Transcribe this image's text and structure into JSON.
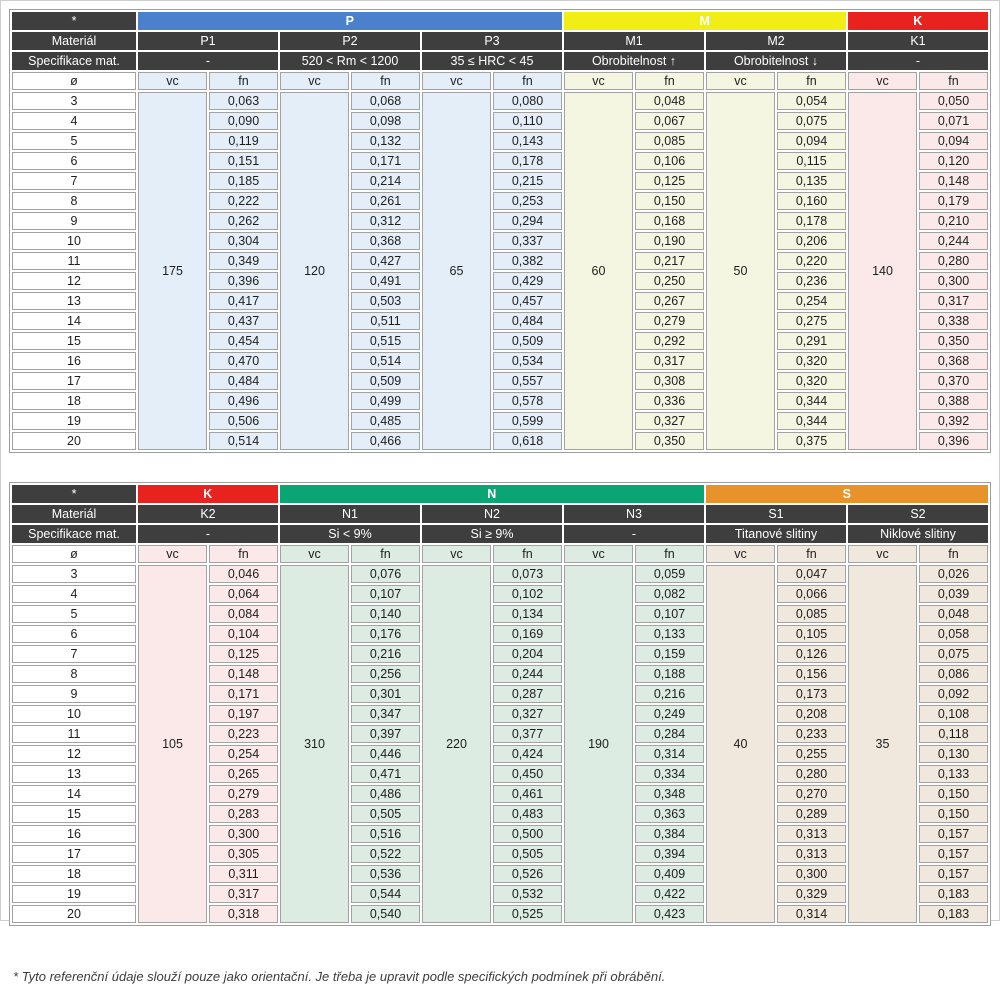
{
  "labels": {
    "corner": "*",
    "material": "Materiál",
    "spec": "Specifikace mat.",
    "diameter": "ø",
    "vc": "vc",
    "fn": "fn"
  },
  "diameters": [
    3,
    4,
    5,
    6,
    7,
    8,
    9,
    10,
    11,
    12,
    13,
    14,
    15,
    16,
    17,
    18,
    19,
    20
  ],
  "tables": [
    {
      "groups": [
        {
          "name": "P",
          "color": "#4a80cc",
          "tint": "#e4eef9",
          "columns": [
            {
              "material": "P1",
              "spec": "-",
              "vc": "175",
              "fn": [
                "0,063",
                "0,090",
                "0,119",
                "0,151",
                "0,185",
                "0,222",
                "0,262",
                "0,304",
                "0,349",
                "0,396",
                "0,417",
                "0,437",
                "0,454",
                "0,470",
                "0,484",
                "0,496",
                "0,506",
                "0,514"
              ]
            },
            {
              "material": "P2",
              "spec": "520 < Rm < 1200",
              "vc": "120",
              "fn": [
                "0,068",
                "0,098",
                "0,132",
                "0,171",
                "0,214",
                "0,261",
                "0,312",
                "0,368",
                "0,427",
                "0,491",
                "0,503",
                "0,511",
                "0,515",
                "0,514",
                "0,509",
                "0,499",
                "0,485",
                "0,466"
              ]
            },
            {
              "material": "P3",
              "spec": "35 ≤ HRC < 45",
              "vc": "65",
              "fn": [
                "0,080",
                "0,110",
                "0,143",
                "0,178",
                "0,215",
                "0,253",
                "0,294",
                "0,337",
                "0,382",
                "0,429",
                "0,457",
                "0,484",
                "0,509",
                "0,534",
                "0,557",
                "0,578",
                "0,599",
                "0,618"
              ]
            }
          ]
        },
        {
          "name": "M",
          "color": "#f0ee15",
          "tint": "#f4f6e1",
          "columns": [
            {
              "material": "M1",
              "spec": "Obrobitelnost ↑",
              "vc": "60",
              "fn": [
                "0,048",
                "0,067",
                "0,085",
                "0,106",
                "0,125",
                "0,150",
                "0,168",
                "0,190",
                "0,217",
                "0,250",
                "0,267",
                "0,279",
                "0,292",
                "0,317",
                "0,308",
                "0,336",
                "0,327",
                "0,350"
              ]
            },
            {
              "material": "M2",
              "spec": "Obrobitelnost ↓",
              "vc": "50",
              "fn": [
                "0,054",
                "0,075",
                "0,094",
                "0,115",
                "0,135",
                "0,160",
                "0,178",
                "0,206",
                "0,220",
                "0,236",
                "0,254",
                "0,275",
                "0,291",
                "0,320",
                "0,320",
                "0,344",
                "0,344",
                "0,375"
              ]
            }
          ]
        },
        {
          "name": "K",
          "color": "#e8231f",
          "tint": "#fbe9e9",
          "columns": [
            {
              "material": "K1",
              "spec": "-",
              "vc": "140",
              "fn": [
                "0,050",
                "0,071",
                "0,094",
                "0,120",
                "0,148",
                "0,179",
                "0,210",
                "0,244",
                "0,280",
                "0,300",
                "0,317",
                "0,338",
                "0,350",
                "0,368",
                "0,370",
                "0,388",
                "0,392",
                "0,396"
              ]
            }
          ]
        }
      ]
    },
    {
      "groups": [
        {
          "name": "K",
          "color": "#e8231f",
          "tint": "#fbe9e9",
          "columns": [
            {
              "material": "K2",
              "spec": "-",
              "vc": "105",
              "fn": [
                "0,046",
                "0,064",
                "0,084",
                "0,104",
                "0,125",
                "0,148",
                "0,171",
                "0,197",
                "0,223",
                "0,254",
                "0,265",
                "0,279",
                "0,283",
                "0,300",
                "0,305",
                "0,311",
                "0,317",
                "0,318"
              ]
            }
          ]
        },
        {
          "name": "N",
          "color": "#0ba574",
          "tint": "#dcece3",
          "columns": [
            {
              "material": "N1",
              "spec": "Si < 9%",
              "vc": "310",
              "fn": [
                "0,076",
                "0,107",
                "0,140",
                "0,176",
                "0,216",
                "0,256",
                "0,301",
                "0,347",
                "0,397",
                "0,446",
                "0,471",
                "0,486",
                "0,505",
                "0,516",
                "0,522",
                "0,536",
                "0,544",
                "0,540"
              ]
            },
            {
              "material": "N2",
              "spec": "Si ≥ 9%",
              "vc": "220",
              "fn": [
                "0,073",
                "0,102",
                "0,134",
                "0,169",
                "0,204",
                "0,244",
                "0,287",
                "0,327",
                "0,377",
                "0,424",
                "0,450",
                "0,461",
                "0,483",
                "0,500",
                "0,505",
                "0,526",
                "0,532",
                "0,525"
              ]
            },
            {
              "material": "N3",
              "spec": "-",
              "vc": "190",
              "fn": [
                "0,059",
                "0,082",
                "0,107",
                "0,133",
                "0,159",
                "0,188",
                "0,216",
                "0,249",
                "0,284",
                "0,314",
                "0,334",
                "0,348",
                "0,363",
                "0,384",
                "0,394",
                "0,409",
                "0,422",
                "0,423"
              ]
            }
          ]
        },
        {
          "name": "S",
          "color": "#e8922c",
          "tint": "#f0e8dc",
          "columns": [
            {
              "material": "S1",
              "spec": "Titanové slitiny",
              "vc": "40",
              "fn": [
                "0,047",
                "0,066",
                "0,085",
                "0,105",
                "0,126",
                "0,156",
                "0,173",
                "0,208",
                "0,233",
                "0,255",
                "0,280",
                "0,270",
                "0,289",
                "0,313",
                "0,313",
                "0,300",
                "0,329",
                "0,314"
              ]
            },
            {
              "material": "S2",
              "spec": "Niklové slitiny",
              "vc": "35",
              "fn": [
                "0,026",
                "0,039",
                "0,048",
                "0,058",
                "0,075",
                "0,086",
                "0,092",
                "0,108",
                "0,118",
                "0,130",
                "0,133",
                "0,150",
                "0,150",
                "0,157",
                "0,157",
                "0,157",
                "0,183",
                "0,183"
              ]
            }
          ]
        }
      ]
    }
  ],
  "footnote": "* Tyto referenční údaje slouží pouze jako orientační. Je třeba je upravit podle specifických podmínek při obrábění."
}
